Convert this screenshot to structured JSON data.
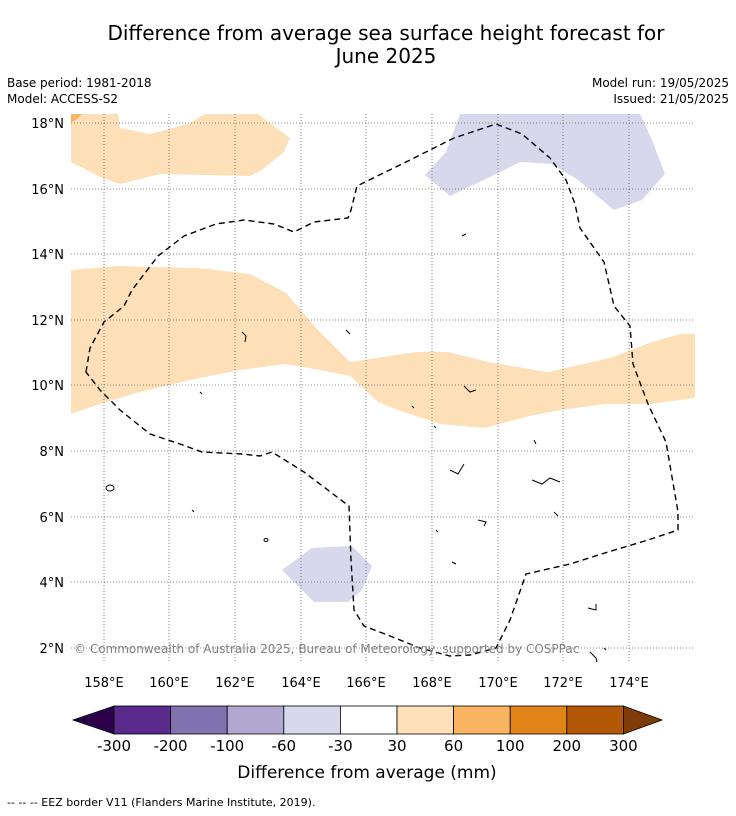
{
  "title": {
    "line1": "Difference from average sea surface height forecast for",
    "line2": "June 2025"
  },
  "meta": {
    "base_period": "Base period: 1981-2018",
    "model": "Model: ACCESS-S2",
    "model_run": "Model run: 19/05/2025",
    "issued": "Issued: 21/05/2025"
  },
  "map": {
    "lat_labels": [
      "18°N",
      "16°N",
      "14°N",
      "12°N",
      "10°N",
      "8°N",
      "6°N",
      "4°N",
      "2°N"
    ],
    "lon_labels": [
      "158°E",
      "160°E",
      "162°E",
      "164°E",
      "166°E",
      "168°E",
      "170°E",
      "172°E",
      "174°E"
    ],
    "copyright": "© Commonwealth of Australia 2025, Bureau of Meteorology, supported by COSPPac"
  },
  "colorbar": {
    "ticks": [
      "-300",
      "-200",
      "-100",
      "-60",
      "-30",
      "30",
      "60",
      "100",
      "200",
      "300"
    ],
    "colors": [
      "#5a2a8c",
      "#8072b0",
      "#b0a8d0",
      "#d8d8ec",
      "#ffffff",
      "#fde0b8",
      "#f8b460",
      "#e08418",
      "#b35806"
    ],
    "under_color": "#2d004b",
    "over_color": "#7f3b08",
    "label": "Difference from average (mm)"
  },
  "footer": {
    "legend": "--  --  -- EEZ border V11 (Flanders Marine Institute, 2019)."
  }
}
